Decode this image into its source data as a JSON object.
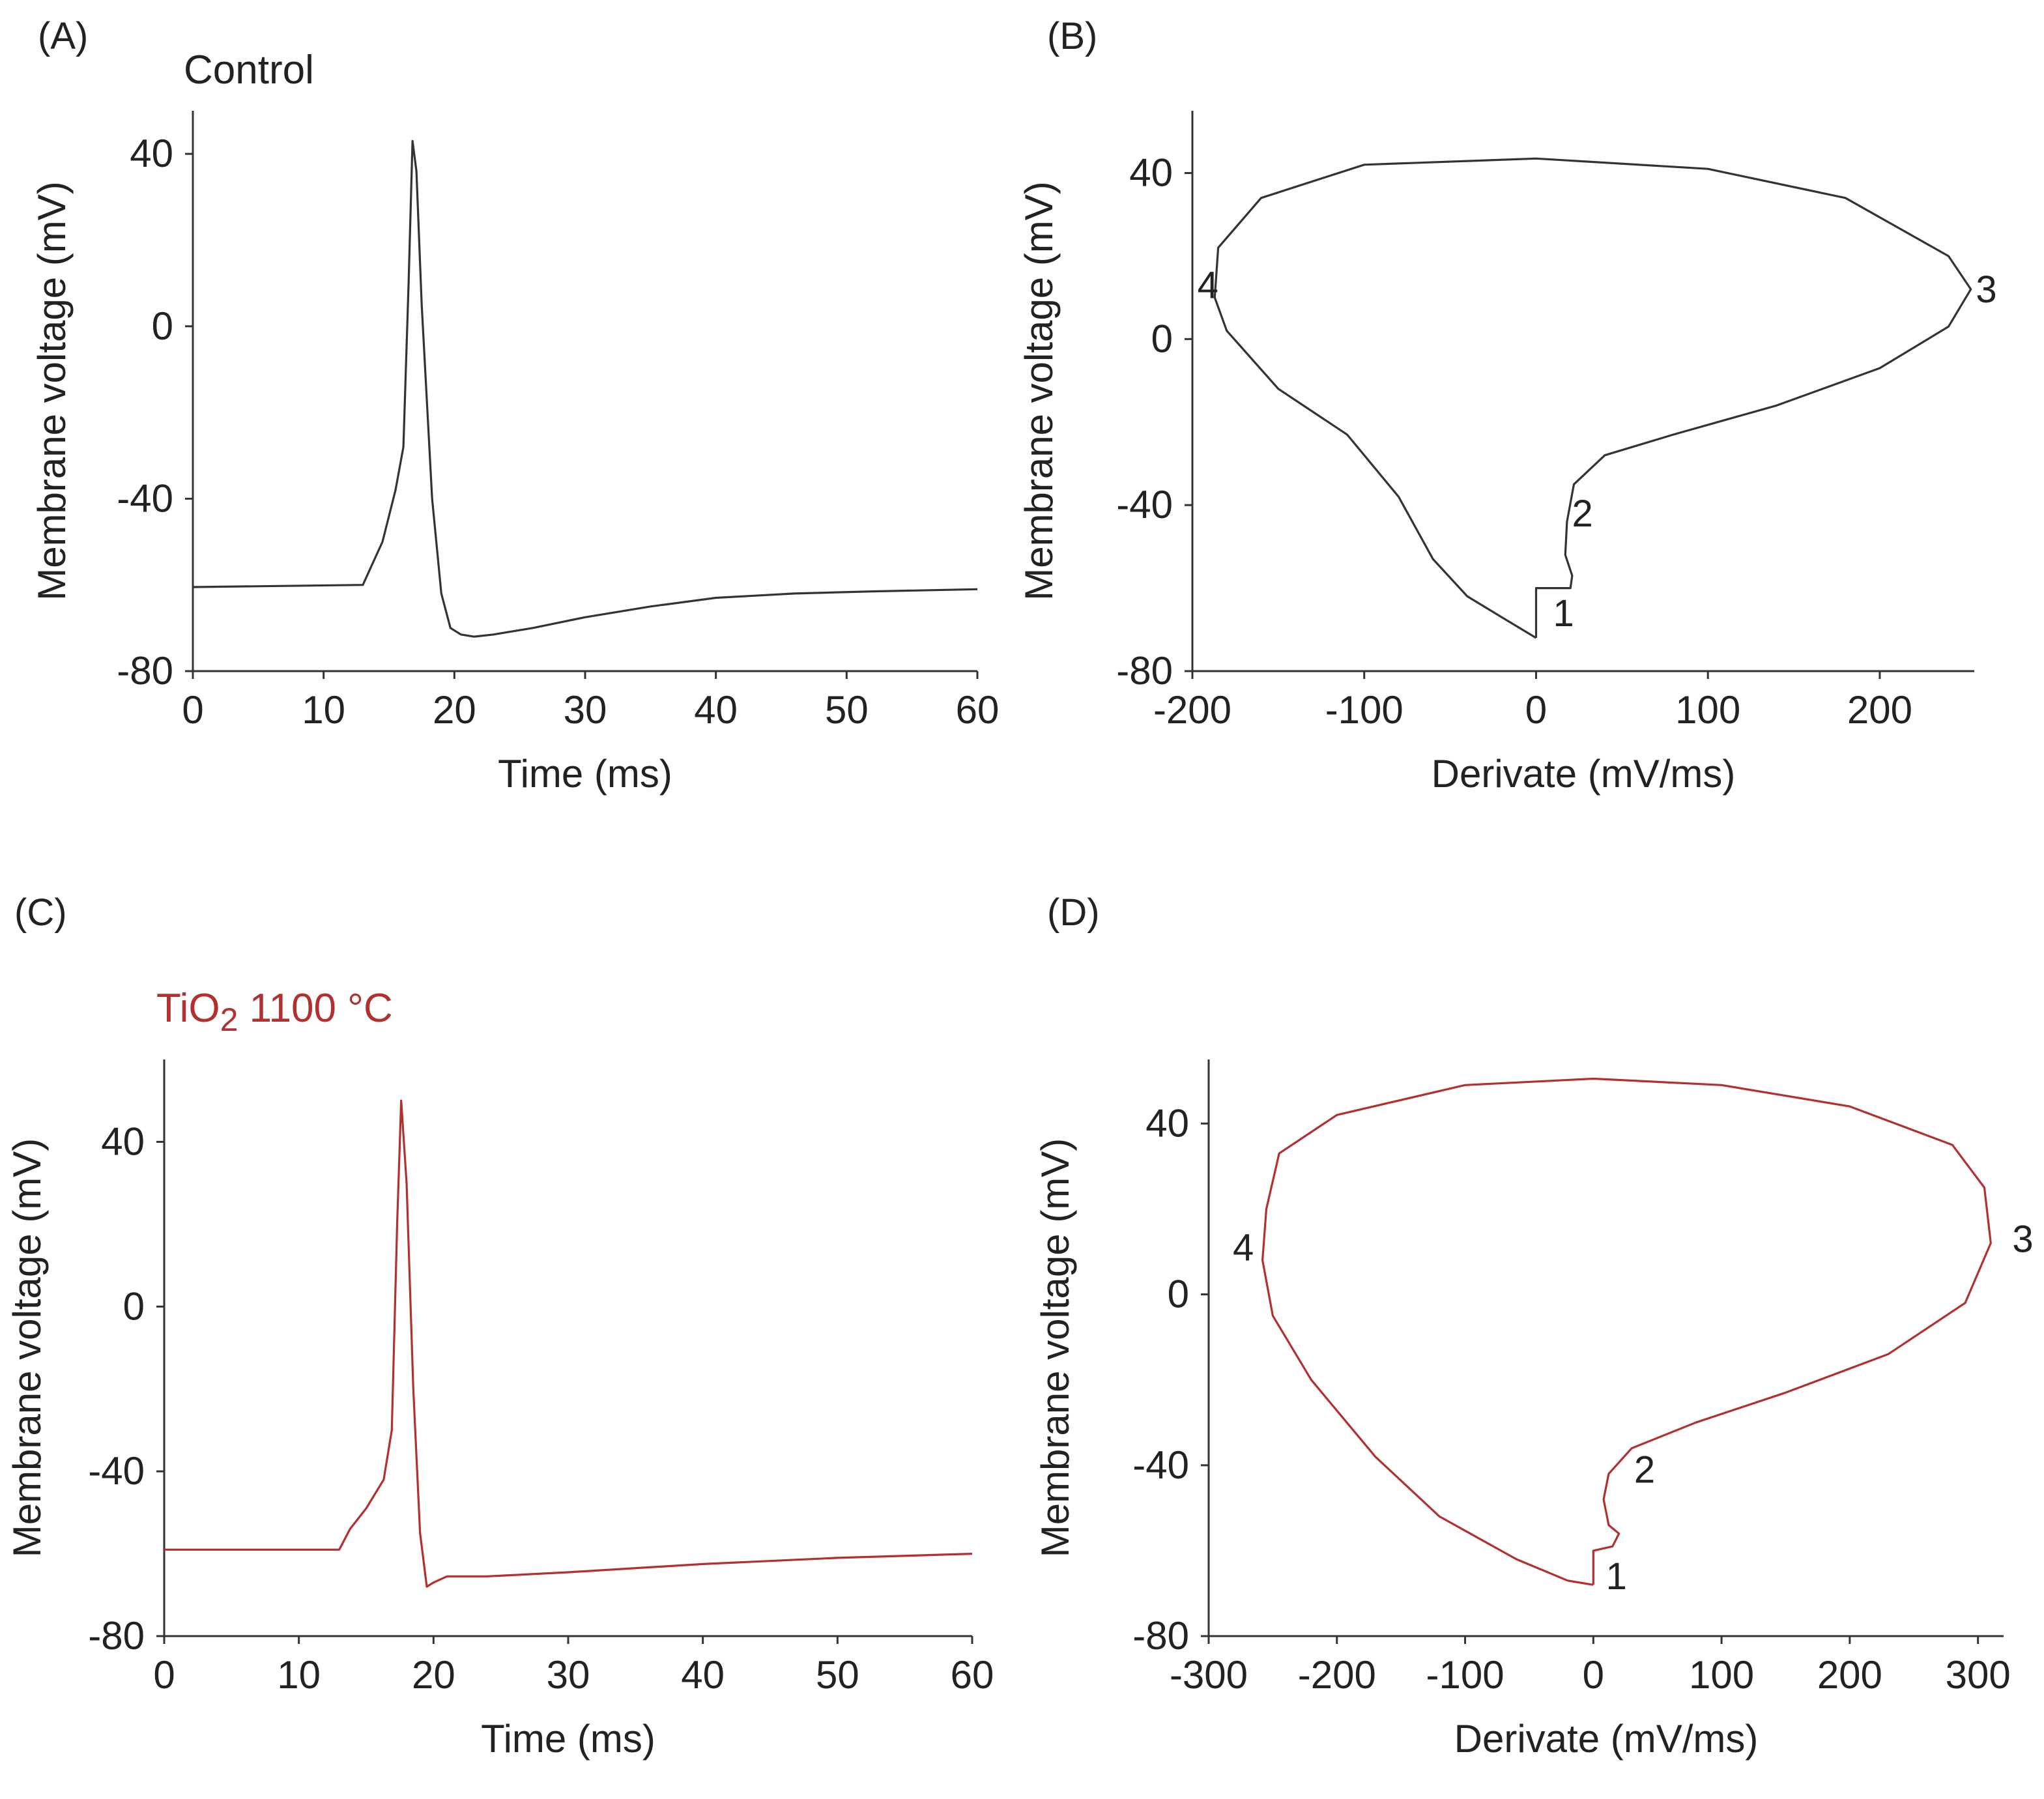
{
  "colors": {
    "control": "#333333",
    "treated": "#b23030",
    "axis": "#333333",
    "text": "#222222"
  },
  "chart_data": [
    {
      "id": "A",
      "type": "line",
      "panel_label": "(A)",
      "condition_label": "Control",
      "condition_color": "#222222",
      "xlabel": "Time (ms)",
      "ylabel": "Membrane voltage (mV)",
      "xlim": [
        0,
        60
      ],
      "ylim": [
        -80,
        50
      ],
      "xticks": [
        "0",
        "10",
        "20",
        "30",
        "40",
        "50",
        "60"
      ],
      "yticks": [
        "40",
        "0",
        "-40",
        "-80"
      ],
      "series": [
        {
          "color": "#333333",
          "x": [
            0,
            13,
            14.5,
            15.5,
            16.1,
            16.5,
            16.8,
            17.1,
            17.5,
            18.3,
            19,
            19.7,
            20.5,
            21.5,
            23,
            26,
            30,
            35,
            40,
            46,
            52,
            60
          ],
          "y": [
            -60.5,
            -60,
            -50,
            -38,
            -28,
            10,
            43,
            36,
            5,
            -40,
            -62,
            -70,
            -71.5,
            -72,
            -71.5,
            -70,
            -67.5,
            -65,
            -63,
            -62,
            -61.5,
            -61
          ]
        }
      ]
    },
    {
      "id": "B",
      "type": "line",
      "panel_label": "(B)",
      "xlabel": "Derivate (mV/ms)",
      "ylabel": "Membrane voltage (mV)",
      "xlim": [
        -200,
        255
      ],
      "ylim": [
        -80,
        55
      ],
      "xticks": [
        "-200",
        "-100",
        "0",
        "100",
        "200"
      ],
      "yticks": [
        "40",
        "0",
        "-40",
        "-80"
      ],
      "point_labels": [
        {
          "text": "1",
          "x": 16,
          "y": -66
        },
        {
          "text": "2",
          "x": 27,
          "y": -42
        },
        {
          "text": "3",
          "x": 262,
          "y": 12
        },
        {
          "text": "4",
          "x": -191,
          "y": 13
        }
      ],
      "series": [
        {
          "color": "#333333",
          "points": [
            [
              0,
              -72
            ],
            [
              0,
              -60
            ],
            [
              20,
              -60
            ],
            [
              21,
              -57
            ],
            [
              17,
              -52
            ],
            [
              18,
              -44
            ],
            [
              22,
              -35
            ],
            [
              40,
              -28
            ],
            [
              80,
              -23
            ],
            [
              140,
              -16
            ],
            [
              200,
              -7
            ],
            [
              240,
              3
            ],
            [
              253,
              12
            ],
            [
              240,
              20
            ],
            [
              180,
              34
            ],
            [
              100,
              41
            ],
            [
              0,
              43.5
            ],
            [
              -100,
              42
            ],
            [
              -160,
              34
            ],
            [
              -185,
              22
            ],
            [
              -187,
              10
            ],
            [
              -180,
              2
            ],
            [
              -150,
              -12
            ],
            [
              -110,
              -23
            ],
            [
              -80,
              -38
            ],
            [
              -60,
              -53
            ],
            [
              -40,
              -62
            ],
            [
              -20,
              -67
            ],
            [
              0,
              -72
            ]
          ]
        }
      ]
    },
    {
      "id": "C",
      "type": "line",
      "panel_label": "(C)",
      "condition_label": "TiO",
      "condition_sub": "2",
      "condition_rest": " 1100 °C",
      "condition_color": "#b23030",
      "xlabel": "Time (ms)",
      "ylabel": "Membrane voltage (mV)",
      "xlim": [
        0,
        60
      ],
      "ylim": [
        -80,
        60
      ],
      "xticks": [
        "0",
        "10",
        "20",
        "30",
        "40",
        "50",
        "60"
      ],
      "yticks": [
        "40",
        "0",
        "-40",
        "-80"
      ],
      "series": [
        {
          "color": "#b23030",
          "x": [
            0,
            13,
            13.8,
            15,
            16.3,
            16.9,
            17.3,
            17.6,
            18,
            18.5,
            19,
            19.5,
            20,
            21,
            24,
            30,
            40,
            50,
            60
          ],
          "y": [
            -59,
            -59,
            -54,
            -49,
            -42,
            -30,
            20,
            50,
            30,
            -20,
            -55,
            -68,
            -67,
            -65.5,
            -65.5,
            -64.5,
            -62.5,
            -61,
            -60
          ]
        }
      ]
    },
    {
      "id": "D",
      "type": "line",
      "panel_label": "(D)",
      "xlabel": "Derivate (mV/ms)",
      "ylabel": "Membrane voltage (mV)",
      "xlim": [
        -300,
        320
      ],
      "ylim": [
        -80,
        55
      ],
      "xticks": [
        "-300",
        "-200",
        "-100",
        "0",
        "100",
        "200",
        "300"
      ],
      "yticks": [
        "40",
        "0",
        "-40",
        "-80"
      ],
      "point_labels": [
        {
          "text": "1",
          "x": 18,
          "y": -66
        },
        {
          "text": "2",
          "x": 40,
          "y": -41
        },
        {
          "text": "3",
          "x": 335,
          "y": 13
        },
        {
          "text": "4",
          "x": -273,
          "y": 11
        }
      ],
      "series": [
        {
          "color": "#b23030",
          "points": [
            [
              0,
              -68
            ],
            [
              0,
              -60
            ],
            [
              15,
              -59
            ],
            [
              20,
              -56
            ],
            [
              12,
              -54
            ],
            [
              8,
              -48
            ],
            [
              12,
              -42
            ],
            [
              30,
              -36
            ],
            [
              80,
              -30
            ],
            [
              150,
              -23
            ],
            [
              230,
              -14
            ],
            [
              290,
              -2
            ],
            [
              310,
              12
            ],
            [
              305,
              25
            ],
            [
              280,
              35
            ],
            [
              200,
              44
            ],
            [
              100,
              49
            ],
            [
              0,
              50.5
            ],
            [
              -100,
              49
            ],
            [
              -200,
              42
            ],
            [
              -245,
              33
            ],
            [
              -255,
              20
            ],
            [
              -258,
              8
            ],
            [
              -250,
              -5
            ],
            [
              -220,
              -20
            ],
            [
              -170,
              -38
            ],
            [
              -120,
              -52
            ],
            [
              -60,
              -62
            ],
            [
              -20,
              -67
            ],
            [
              0,
              -68
            ]
          ]
        }
      ]
    }
  ]
}
